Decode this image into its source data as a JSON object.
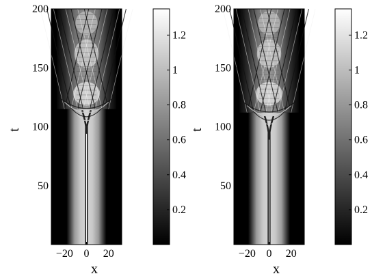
{
  "chart_data": [
    {
      "type": "heatmap",
      "title": "",
      "xlabel": "x",
      "ylabel": "t",
      "xlim": [
        -32,
        32
      ],
      "ylim": [
        0,
        200
      ],
      "x_ticks": [
        -20,
        0,
        20
      ],
      "y_ticks": [
        50,
        100,
        150,
        200
      ],
      "colormap": "gray",
      "grid": false,
      "colorbar": {
        "range": [
          0,
          1.35
        ],
        "ticks": [
          0.2,
          0.4,
          0.6,
          0.8,
          1,
          1.2
        ]
      },
      "features": {
        "background_core_halfwidth": 14,
        "filament_onset_t": 100,
        "breakup_t": 115
      }
    },
    {
      "type": "heatmap",
      "title": "",
      "xlabel": "x",
      "ylabel": "t",
      "xlim": [
        -32,
        32
      ],
      "ylim": [
        0,
        200
      ],
      "x_ticks": [
        -20,
        0,
        20
      ],
      "y_ticks": [
        50,
        100,
        150,
        200
      ],
      "colormap": "gray",
      "grid": false,
      "colorbar": {
        "range": [
          0,
          1.35
        ],
        "ticks": [
          0.2,
          0.4,
          0.6,
          0.8,
          1,
          1.2
        ]
      },
      "features": {
        "background_core_halfwidth": 15,
        "filament_onset_t": 95,
        "breakup_t": 112
      }
    }
  ]
}
